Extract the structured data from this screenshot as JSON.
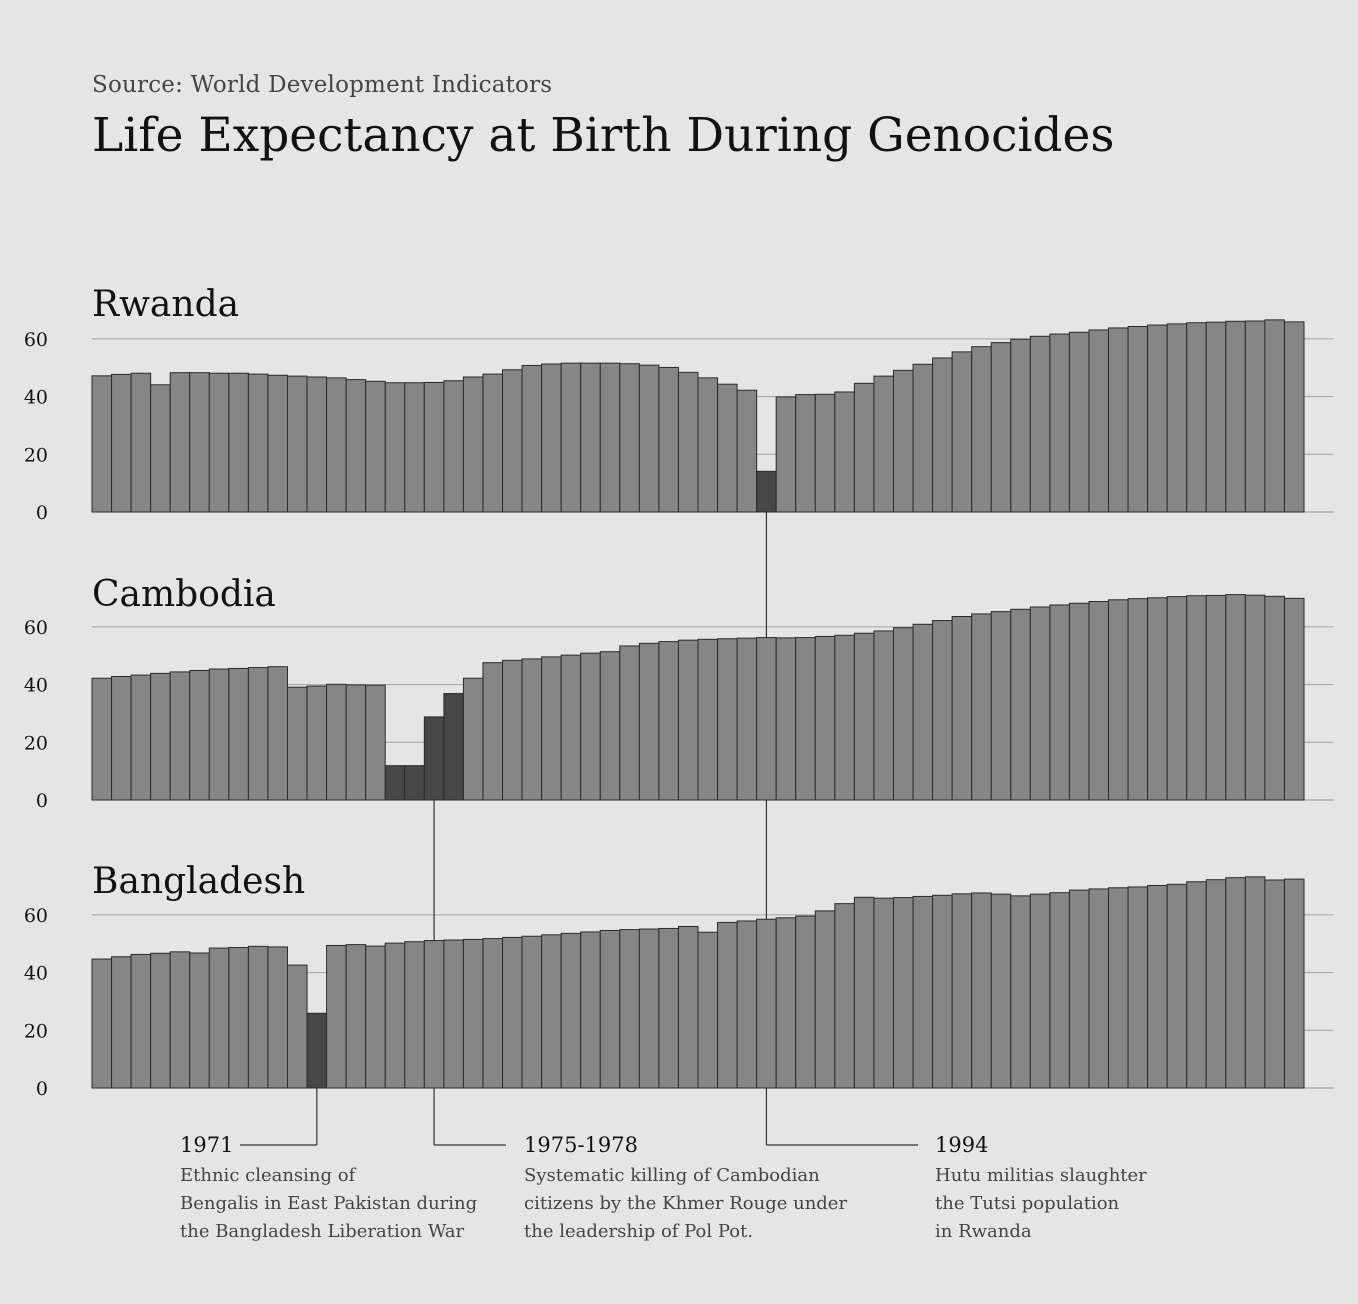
{
  "source": "Source: World Development Indicators",
  "title": "Life Expectancy at Birth During Genocides",
  "chart_data": {
    "type": "bar",
    "title": "Life Expectancy at Birth During Genocides",
    "xlabel": "",
    "ylabel": "",
    "ylim": [
      0,
      75
    ],
    "yticks": [
      0,
      20,
      40,
      60
    ],
    "grid": true,
    "first_year": 1960,
    "colors": {
      "normal": "#868686",
      "highlight": "#474747",
      "stroke": "#2b2b2b",
      "grid": "#a2a2a2",
      "text": "#111111"
    },
    "panels": [
      {
        "name": "Rwanda",
        "highlight_index": [
          34
        ],
        "values": [
          47.2,
          47.7,
          48.1,
          44.1,
          48.3,
          48.3,
          48.1,
          48.1,
          47.8,
          47.4,
          47.1,
          46.8,
          46.5,
          45.9,
          45.3,
          44.8,
          44.8,
          44.9,
          45.5,
          46.8,
          47.8,
          49.3,
          50.8,
          51.3,
          51.6,
          51.6,
          51.6,
          51.4,
          50.9,
          50.1,
          48.4,
          46.5,
          44.3,
          42.2,
          14.1,
          39.9,
          40.7,
          40.8,
          41.6,
          44.6,
          47.1,
          49.1,
          51.2,
          53.4,
          55.5,
          57.3,
          58.7,
          59.9,
          60.9,
          61.7,
          62.3,
          63.1,
          63.8,
          64.3,
          64.8,
          65.2,
          65.6,
          65.8,
          66.1,
          66.2,
          66.6,
          65.9
        ]
      },
      {
        "name": "Cambodia",
        "highlight_index": [
          15,
          16,
          17,
          18
        ],
        "values": [
          42.2,
          42.8,
          43.3,
          43.9,
          44.4,
          44.9,
          45.4,
          45.6,
          45.9,
          46.2,
          39.1,
          39.5,
          40.1,
          39.9,
          39.8,
          11.9,
          11.9,
          28.8,
          36.9,
          42.2,
          47.6,
          48.4,
          48.9,
          49.6,
          50.2,
          50.9,
          51.4,
          53.4,
          54.3,
          54.9,
          55.4,
          55.7,
          55.9,
          56.1,
          56.3,
          56.2,
          56.3,
          56.7,
          57.1,
          57.8,
          58.6,
          59.7,
          60.9,
          62.2,
          63.6,
          64.5,
          65.3,
          66.1,
          66.9,
          67.6,
          68.2,
          68.8,
          69.4,
          69.8,
          70.1,
          70.5,
          70.8,
          70.9,
          71.2,
          71.0,
          70.6,
          69.9
        ]
      },
      {
        "name": "Bangladesh",
        "highlight_index": [
          11
        ],
        "values": [
          44.7,
          45.5,
          46.3,
          46.7,
          47.2,
          46.8,
          48.5,
          48.7,
          49.1,
          48.9,
          42.6,
          25.9,
          49.4,
          49.7,
          49.2,
          50.2,
          50.7,
          51.1,
          51.3,
          51.5,
          51.8,
          52.2,
          52.6,
          53.1,
          53.6,
          54.1,
          54.6,
          54.9,
          55.1,
          55.3,
          56.0,
          54.0,
          57.4,
          57.9,
          58.5,
          59.0,
          59.6,
          61.4,
          63.9,
          66.1,
          65.8,
          66.0,
          66.4,
          66.8,
          67.3,
          67.6,
          67.2,
          66.6,
          67.2,
          67.7,
          68.6,
          69.0,
          69.4,
          69.7,
          70.2,
          70.6,
          71.5,
          72.2,
          72.9,
          73.2,
          72.1,
          72.4
        ]
      }
    ],
    "annotations": [
      {
        "label": "1971",
        "panel": "Bangladesh",
        "bar_index": 11,
        "lines": [
          "Ethnic cleansing of",
          "Bengalis in East Pakistan during",
          "the Bangladesh Liberation War"
        ]
      },
      {
        "label": "1975-1978",
        "panel": "Cambodia",
        "bar_index": 17,
        "lines": [
          "Systematic killing of Cambodian",
          "citizens by the Khmer Rouge under",
          "the leadership of Pol Pot."
        ]
      },
      {
        "label": "1994",
        "panel": "Rwanda",
        "bar_index": 34,
        "lines": [
          "Hutu militias slaughter",
          "the Tutsi population",
          "in Rwanda"
        ]
      }
    ]
  }
}
